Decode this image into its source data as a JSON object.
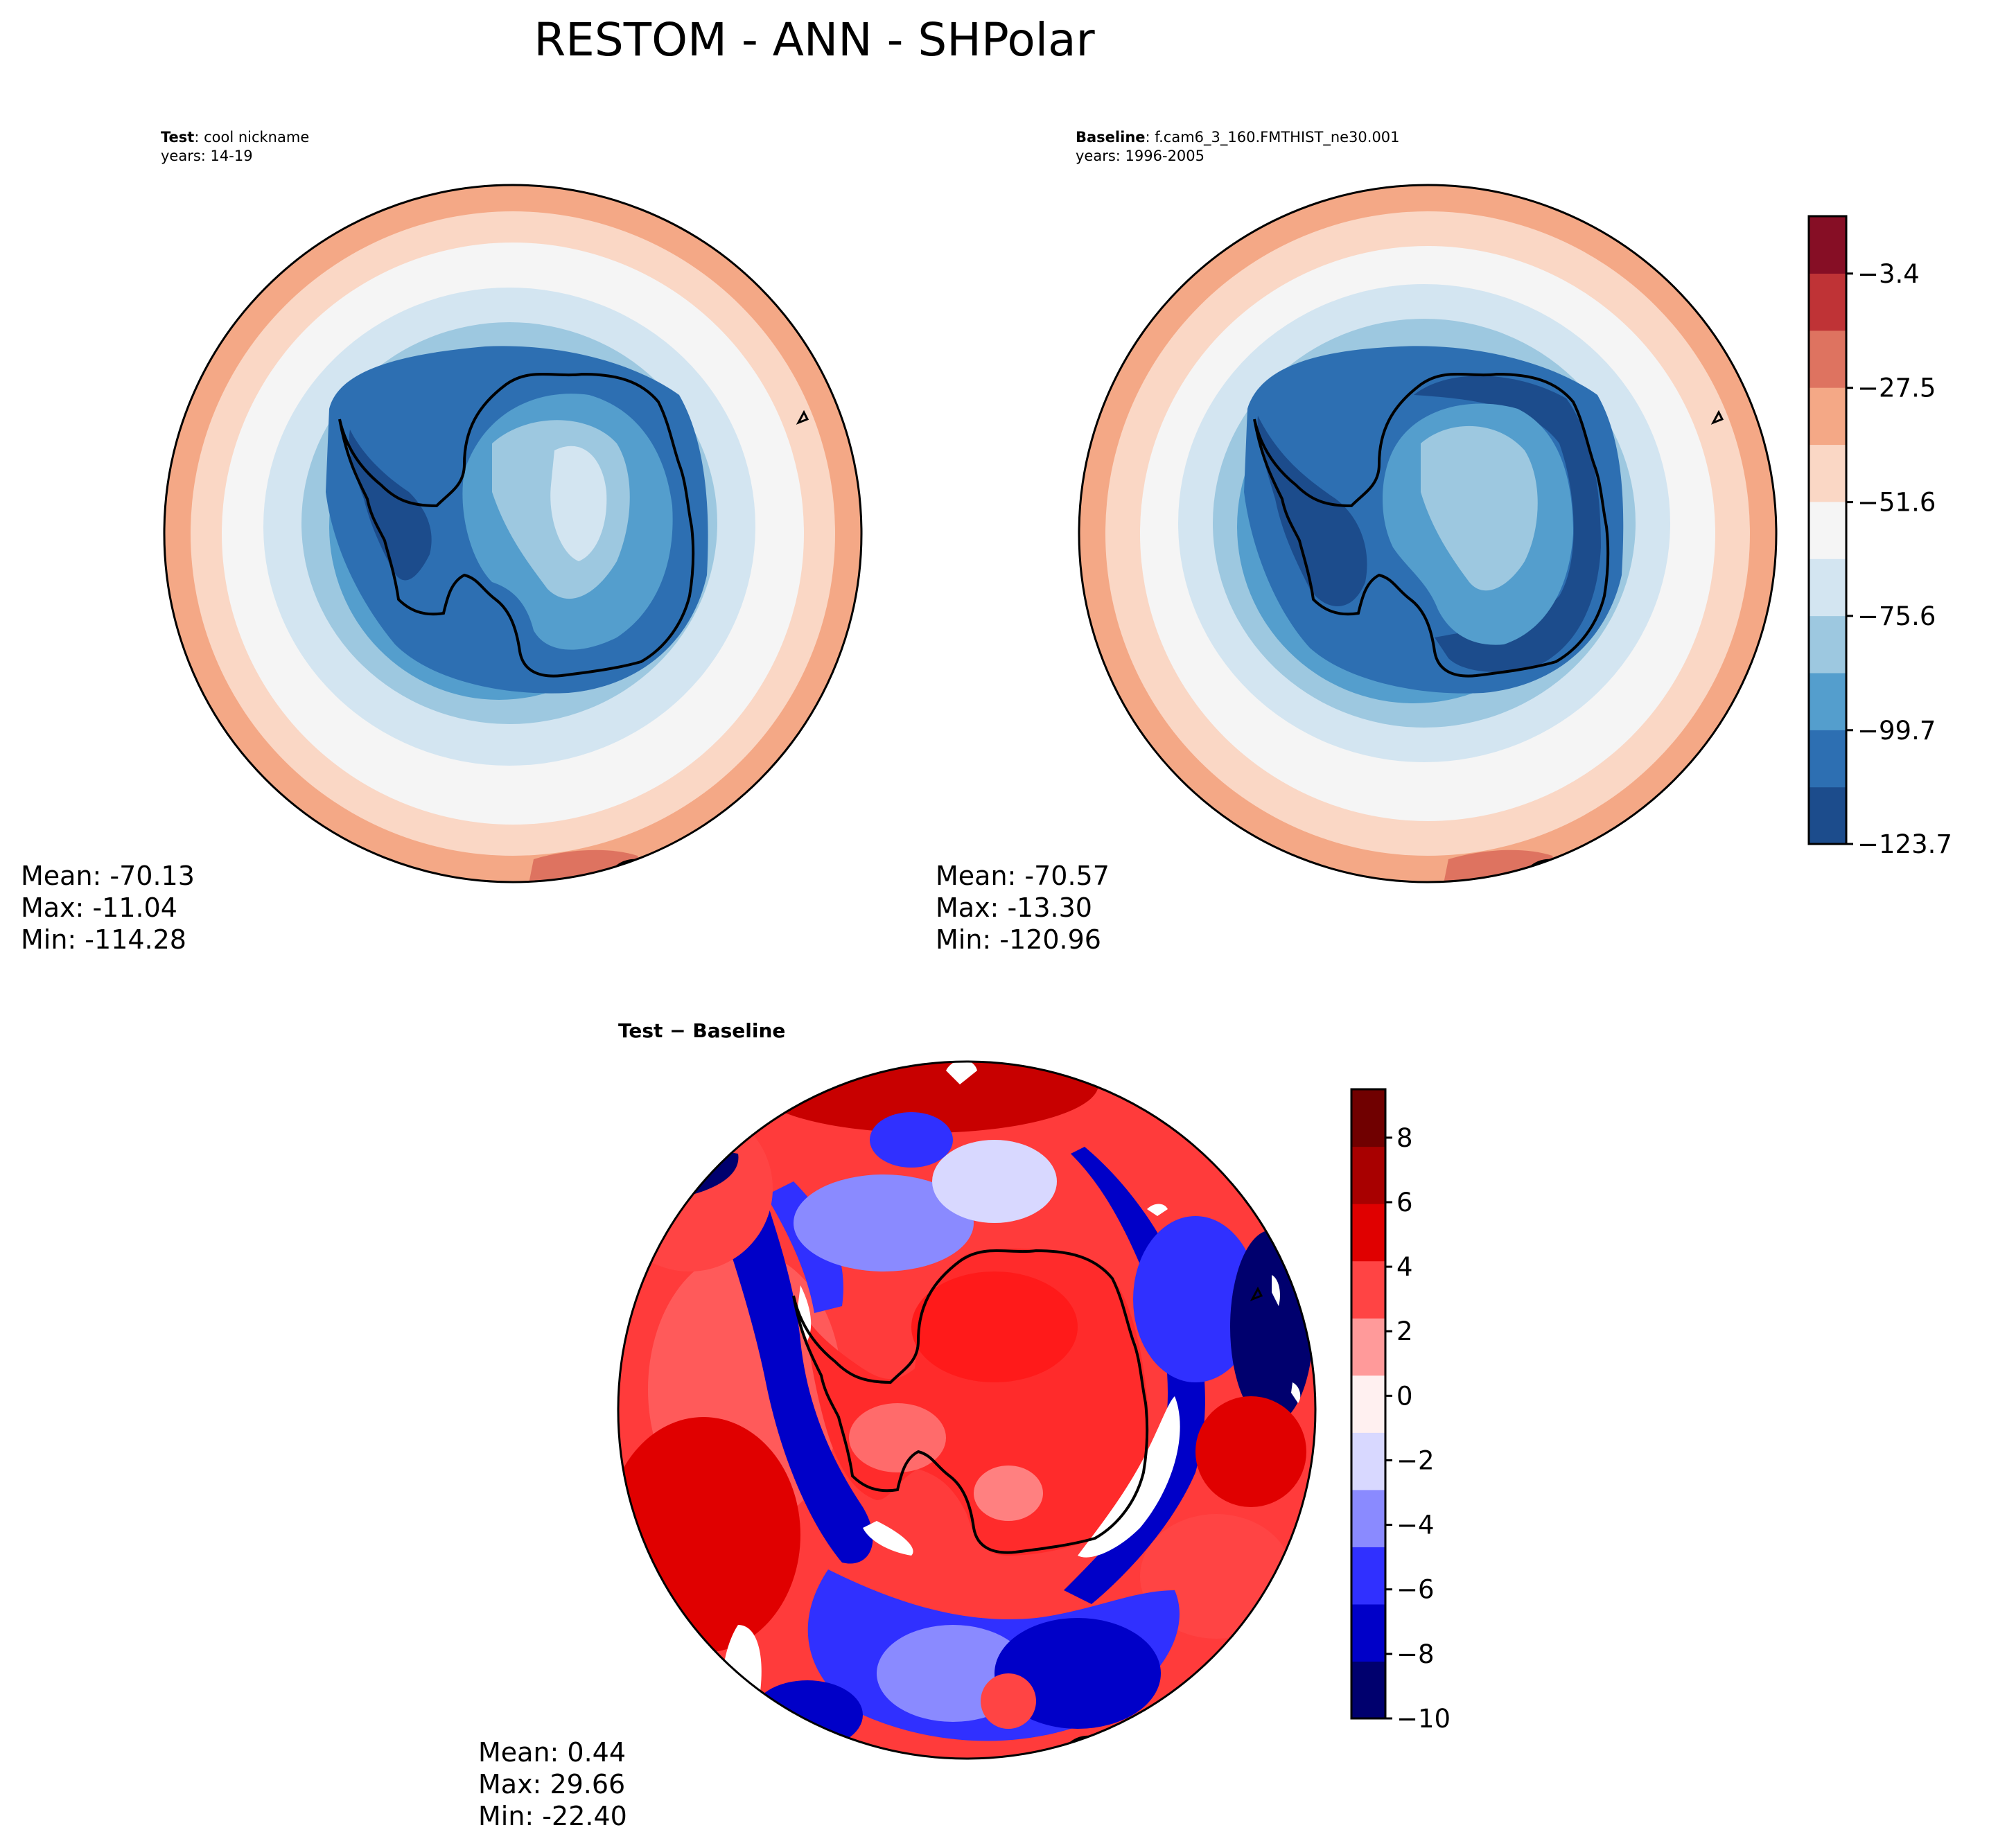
{
  "figure": {
    "title": "RESTOM - ANN - SHPolar"
  },
  "panels": {
    "test": {
      "label_bold": "Test",
      "label_rest": ": cool nickname",
      "years": "years: 14-19",
      "stats": {
        "mean": "Mean: -70.13",
        "max": "Max: -11.04",
        "min": "Min: -114.28"
      }
    },
    "baseline": {
      "label_bold": "Baseline",
      "label_rest": ": f.cam6_3_160.FMTHIST_ne30.001",
      "years": "years: 1996-2005",
      "stats": {
        "mean": "Mean: -70.57",
        "max": "Max: -13.30",
        "min": "Min: -120.96"
      }
    },
    "diff": {
      "label_bold": "Test − Baseline",
      "stats": {
        "mean": "Mean:  0.44",
        "max": "Max: 29.66",
        "min": "Min: -22.40"
      }
    }
  },
  "colorbars": {
    "top": {
      "ticks": [
        "−3.4",
        "−27.5",
        "−51.6",
        "−75.6",
        "−99.7",
        "−123.7"
      ],
      "range": [
        -123.7,
        8.7
      ],
      "colors": [
        "#1c4c8c",
        "#2d6fb2",
        "#549ecd",
        "#9dc8e0",
        "#d3e5f1",
        "#f5f5f5",
        "#fad7c5",
        "#f4a886",
        "#de7360",
        "#bf3336",
        "#860e25"
      ]
    },
    "diff": {
      "ticks": [
        "8",
        "6",
        "4",
        "2",
        "0",
        "−2",
        "−4",
        "−6",
        "−8",
        "−10"
      ],
      "range": [
        -10,
        9.5
      ],
      "colors": [
        "#00006e",
        "#0000c8",
        "#3030ff",
        "#8a8aff",
        "#d8d8ff",
        "#fff0f0",
        "#ff9a9a",
        "#ff4444",
        "#e00000",
        "#a80000",
        "#700000"
      ]
    }
  }
}
